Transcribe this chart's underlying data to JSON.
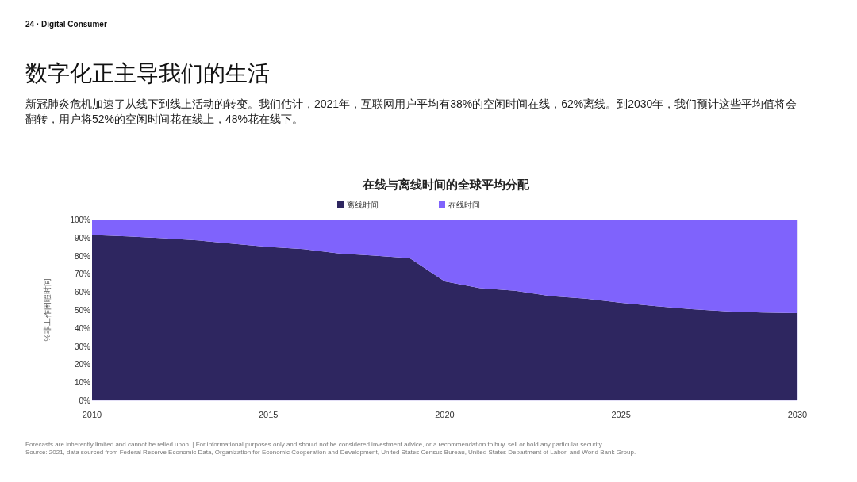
{
  "chart_data": {
    "type": "area",
    "title": "在线与离线时间的全球平均分配",
    "subtitle": "新冠肺炎危机加速了从线下到线上活动的转变。我们估计，2021年，互联网用户平均有38%的空闲时间在线，62%离线。到2030年，我们预计这些平均值将会翻转，用户将52%的空闲时间花在线上，48%花在线下。",
    "annotations": [
      "24 · Digital Consumer",
      "数字化正主导我们的生活",
      "Forecasts are inherently limited and cannot be relied upon. | For informational purposes only and should not be considered investment advice, or a recommendation to buy, sell or hold any particular security.",
      "Source: 2021, data sourced from Federal Reserve Economic Data, Organization for Economic Cooperation and Development, United States Census Bureau, United States Department of Labor, and World Bank Group."
    ],
    "ylabel": "%非工作闲暇时间",
    "stacked": true,
    "x": [
      2010,
      2011,
      2012,
      2013,
      2014,
      2015,
      2016,
      2017,
      2018,
      2019,
      2020,
      2021,
      2022,
      2023,
      2024,
      2025,
      2026,
      2027,
      2028,
      2029,
      2030
    ],
    "series": [
      {
        "name": "离线时间",
        "color": "#2e2660",
        "values": [
          91.5,
          90.7,
          89.7,
          88.5,
          86.6,
          84.9,
          83.7,
          81.2,
          80.0,
          78.7,
          65.8,
          62.1,
          60.6,
          57.7,
          56.2,
          54.0,
          52.1,
          50.4,
          49.2,
          48.6,
          48.2
        ]
      },
      {
        "name": "在线时间",
        "color": "#7f63fc",
        "values": [
          8.5,
          9.3,
          10.3,
          11.5,
          13.4,
          15.1,
          16.3,
          18.8,
          20.0,
          21.3,
          34.2,
          37.9,
          39.4,
          42.3,
          43.8,
          46.0,
          47.9,
          49.6,
          50.8,
          51.4,
          51.8
        ]
      }
    ],
    "xlim": [
      2010,
      2030
    ],
    "xticks": [
      2010,
      2015,
      2020,
      2025,
      2030
    ],
    "ylim": [
      0,
      100
    ],
    "yticks": [
      {
        "value": 0,
        "label": "0%"
      },
      {
        "value": 10,
        "label": "10%"
      },
      {
        "value": 20,
        "label": "20%"
      },
      {
        "value": 30,
        "label": "30%"
      },
      {
        "value": 40,
        "label": "40%"
      },
      {
        "value": 50,
        "label": "50%"
      },
      {
        "value": 60,
        "label": "60%"
      },
      {
        "value": 70,
        "label": "70%"
      },
      {
        "value": 80,
        "label": "80%"
      },
      {
        "value": 90,
        "label": "90%"
      },
      {
        "value": 100,
        "label": "100%"
      }
    ],
    "legend": "top",
    "grid": false
  }
}
